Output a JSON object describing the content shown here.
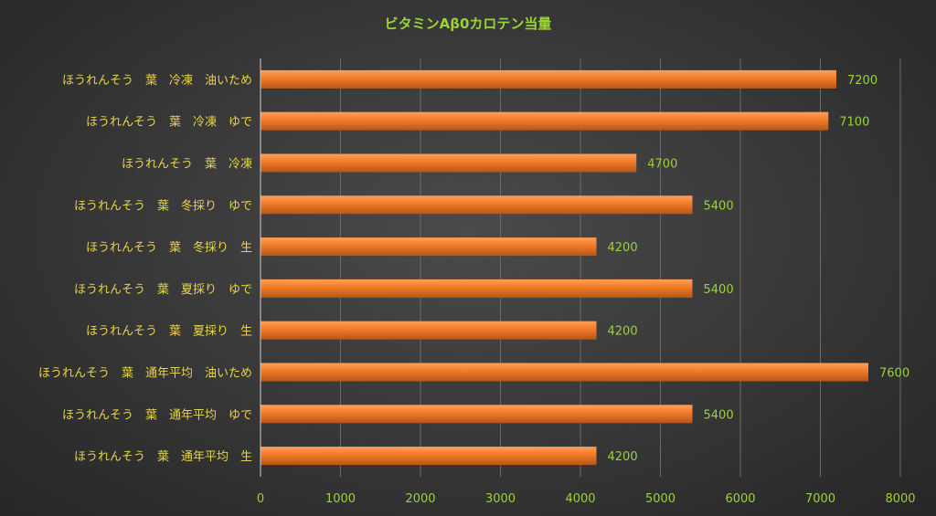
{
  "chart_data": {
    "type": "bar",
    "orientation": "horizontal",
    "title": "ビタミンAβ0カロテン当量",
    "categories": [
      "ほうれんそう　葉　冷凍　油いため",
      "ほうれんそう　葉　冷凍　ゆで",
      "ほうれんそう　葉　冷凍",
      "ほうれんそう　葉　冬採り　ゆで",
      "ほうれんそう　葉　冬採り　生",
      "ほうれんそう　葉　夏採り　ゆで",
      "ほうれんそう　葉　夏採り　生",
      "ほうれんそう　葉　通年平均　油いため",
      "ほうれんそう　葉　通年平均　ゆで",
      "ほうれんそう　葉　通年平均　生"
    ],
    "values": [
      7200,
      7100,
      4700,
      5400,
      4200,
      5400,
      4200,
      7600,
      5400,
      4200
    ],
    "value_labels": [
      "7200",
      "7100",
      "4700",
      "5400",
      "4200",
      "5400",
      "4200",
      "7600",
      "5400",
      "4200"
    ],
    "xlim": [
      0,
      8000
    ],
    "x_ticks": [
      0,
      1000,
      2000,
      3000,
      4000,
      5000,
      6000,
      7000,
      8000
    ],
    "x_tick_labels": [
      "0",
      "1000",
      "2000",
      "3000",
      "4000",
      "5000",
      "6000",
      "7000",
      "8000"
    ],
    "grid": true,
    "legend": "none",
    "colors": {
      "bar": "#f07a28",
      "bar_highlight": "#ffa05a",
      "bar_shadow": "#b8551a",
      "title": "#9bd33a",
      "category_text": "#e8d44a",
      "value_text": "#9bd33a"
    }
  }
}
